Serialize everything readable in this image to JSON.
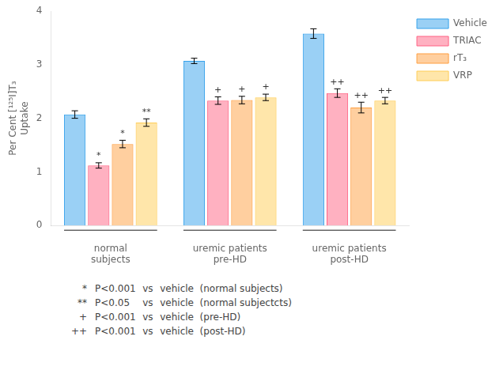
{
  "chart_data": {
    "type": "bar",
    "categories": [
      "normal\nsubjects",
      "uremic patients\npre-HD",
      "uremic patients\npost-HD"
    ],
    "series": [
      {
        "name": "Vehicle",
        "values": [
          2.07,
          3.07,
          3.58
        ],
        "errors": [
          0.07,
          0.05,
          0.09
        ],
        "annotations": [
          null,
          null,
          null
        ]
      },
      {
        "name": "TRIAC",
        "values": [
          1.12,
          2.33,
          2.47
        ],
        "errors": [
          0.05,
          0.07,
          0.08
        ],
        "annotations": [
          "*",
          "+",
          "++"
        ]
      },
      {
        "name": "rT₃",
        "values": [
          1.52,
          2.34,
          2.2
        ],
        "errors": [
          0.07,
          0.07,
          0.1
        ],
        "annotations": [
          "*",
          "+",
          "++"
        ]
      },
      {
        "name": "VRP",
        "values": [
          1.92,
          2.39,
          2.33
        ],
        "errors": [
          0.07,
          0.06,
          0.06
        ],
        "annotations": [
          "**",
          "+",
          "++"
        ]
      }
    ],
    "ylabel": "Per Cent [¹²⁵I]T₃\nUptake",
    "ylim": [
      0,
      4.0
    ],
    "yticks": [
      0,
      1,
      2,
      3,
      4
    ],
    "grid": false,
    "legend": "upper right",
    "footnotes": [
      {
        "symbol": "*",
        "text": "P<0.001   vs   vehicle  (normal subjects)"
      },
      {
        "symbol": "**",
        "text": "P<0.05     vs   vehicle  (normal subjectcts)"
      },
      {
        "symbol": "+",
        "text": "P<0.001   vs   vehicle  (pre-HD)"
      },
      {
        "symbol": "++",
        "text": "P<0.001   vs   vehicle  (post-HD)"
      }
    ]
  }
}
